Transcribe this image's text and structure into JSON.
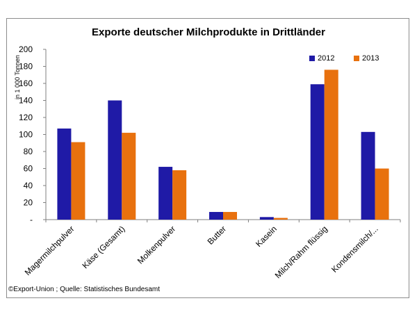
{
  "chart_data": {
    "type": "bar",
    "title": "Exporte deutscher Milchprodukte in Drittländer",
    "ylabel": "in 1 000 Tonnen",
    "xlabel": "",
    "ylim": [
      0,
      200
    ],
    "ytick_step": 20,
    "ytick_labels": [
      "-",
      "20",
      "40",
      "60",
      "80",
      "100",
      "120",
      "140",
      "160",
      "180",
      "200"
    ],
    "categories": [
      "Magermilchpulver",
      "Käse (Gesamt)",
      "Molkenpulver",
      "Butter",
      "Kasein",
      "Milch/Rahm flüssig",
      "Kondensmilch/..."
    ],
    "series": [
      {
        "name": "2012",
        "color": "#1f1aa6",
        "values": [
          107,
          140,
          62,
          9,
          3,
          159,
          103
        ]
      },
      {
        "name": "2013",
        "color": "#e8710e",
        "values": [
          91,
          102,
          58,
          9,
          2,
          176,
          60
        ]
      }
    ],
    "legend": "top-right",
    "grid": false
  },
  "source": "©Export-Union ; Quelle: Statistisches Bundesamt"
}
